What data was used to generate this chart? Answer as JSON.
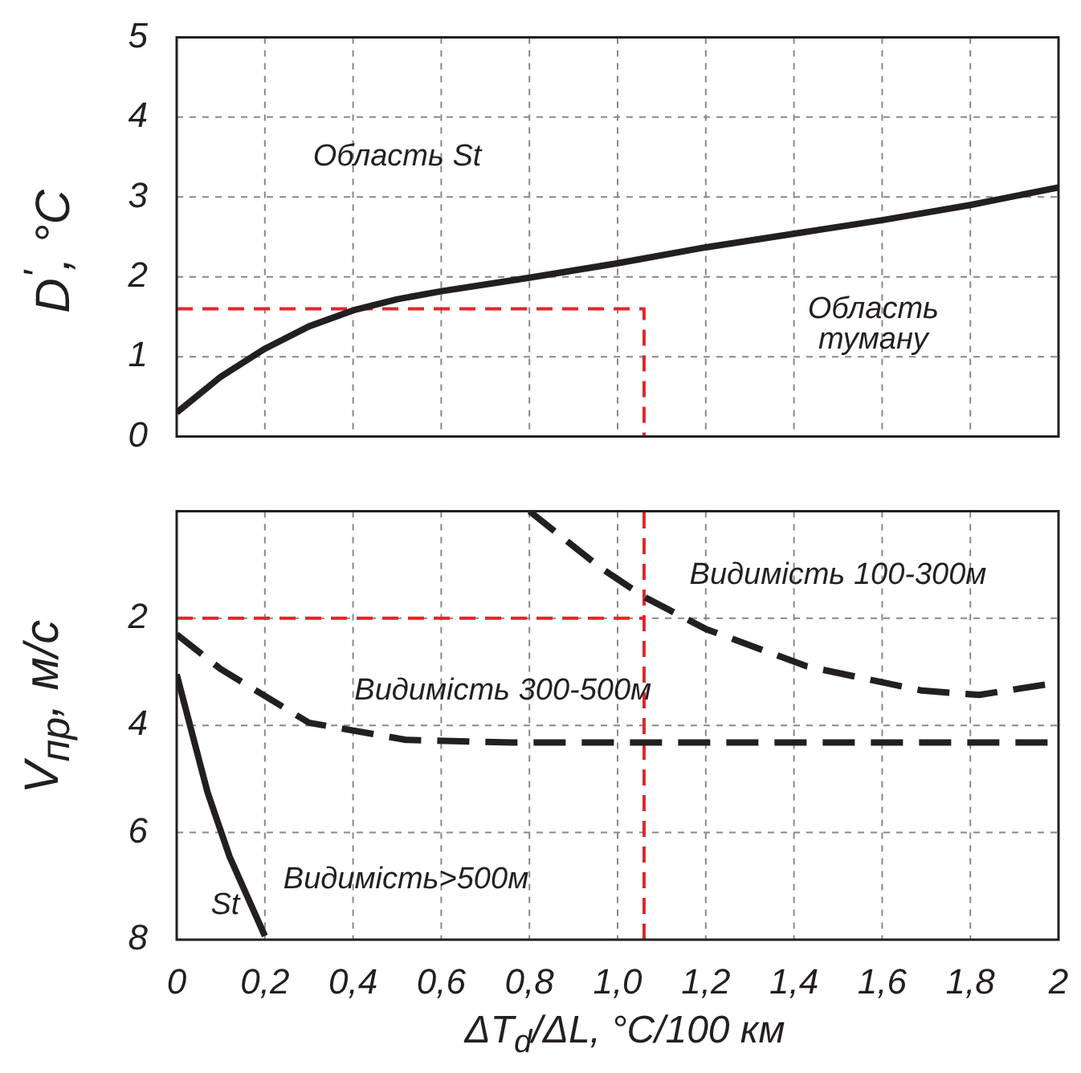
{
  "chart_data": [
    {
      "type": "line",
      "ylabel": "D$^{'}$, °C",
      "xlim": [
        0,
        2
      ],
      "xticks": [
        0,
        0.2,
        0.4,
        0.6,
        0.8,
        1,
        1.2,
        1.4,
        1.6,
        1.8,
        2
      ],
      "ylim": [
        0,
        5
      ],
      "yticks": [
        0,
        1,
        2,
        3,
        4,
        5
      ],
      "tick_labels": "y",
      "grid": true,
      "legend": false,
      "marker": "none",
      "series": [
        {
          "color": "#231f20",
          "line_style": "solid",
          "x": [
            0,
            0.1,
            0.2,
            0.3,
            0.4,
            0.5,
            0.6,
            0.8,
            1.0,
            1.2,
            1.4,
            1.6,
            1.8,
            2.0
          ],
          "values": [
            0.3,
            0.75,
            1.1,
            1.38,
            1.58,
            1.72,
            1.82,
            1.99,
            2.17,
            2.37,
            2.54,
            2.71,
            2.9,
            3.12
          ]
        },
        {
          "color": "#e2252b",
          "line_style": "dashed",
          "x": [
            0,
            1.06,
            1.06
          ],
          "values": [
            1.6,
            1.6,
            0
          ]
        }
      ],
      "annotations": [
        "Область St",
        "Область\nтуману"
      ]
    },
    {
      "type": "line",
      "ylabel": "V$_{пр}$, м/с",
      "xlabel": "ΔT$_{d}$/ΔL, °C/100 км",
      "xlim": [
        0,
        2
      ],
      "xticks": [
        {
          "value": 0,
          "label": "0"
        },
        {
          "value": 0.2,
          "label": "0,2"
        },
        {
          "value": 0.4,
          "label": "0,4"
        },
        {
          "value": 0.6,
          "label": "0,6"
        },
        {
          "value": 0.8,
          "label": "0,8"
        },
        {
          "value": 1,
          "label": "1,0"
        },
        {
          "value": 1.2,
          "label": "1,2"
        },
        {
          "value": 1.4,
          "label": "1,4"
        },
        {
          "value": 1.6,
          "label": "1,6"
        },
        {
          "value": 1.8,
          "label": "1,8"
        },
        {
          "value": 2,
          "label": "2"
        }
      ],
      "ylim": [
        8,
        0
      ],
      "yticks": [
        2,
        4,
        6,
        8
      ],
      "grid": true,
      "legend": false,
      "marker": "none",
      "series": [
        {
          "color": "#231f20",
          "line_style": "dashed",
          "x": [
            0.8,
            0.96,
            1.06,
            1.2,
            1.43,
            1.69,
            1.82,
            2.0
          ],
          "values": [
            0,
            1.05,
            1.6,
            2.2,
            2.9,
            3.35,
            3.43,
            3.2
          ]
        },
        {
          "color": "#231f20",
          "line_style": "dashed",
          "x": [
            0,
            0.1,
            0.3,
            0.52,
            0.76,
            2.0
          ],
          "values": [
            2.3,
            2.95,
            3.95,
            4.27,
            4.32,
            4.32
          ]
        },
        {
          "color": "#231f20",
          "line_style": "solid",
          "x": [
            0,
            0.07,
            0.12,
            0.2
          ],
          "values": [
            3.05,
            5.25,
            6.45,
            7.93
          ]
        },
        {
          "color": "#e2252b",
          "line_style": "dashed",
          "x": [
            0,
            1.06
          ],
          "values": [
            2,
            2
          ]
        },
        {
          "color": "#e2252b",
          "line_style": "dashed",
          "x": [
            1.06,
            1.06
          ],
          "values": [
            8,
            0
          ]
        }
      ],
      "annotations": [
        "Видимість 100-300м",
        "Видимість 300-500м",
        "Видимість>500м",
        "St"
      ]
    }
  ]
}
